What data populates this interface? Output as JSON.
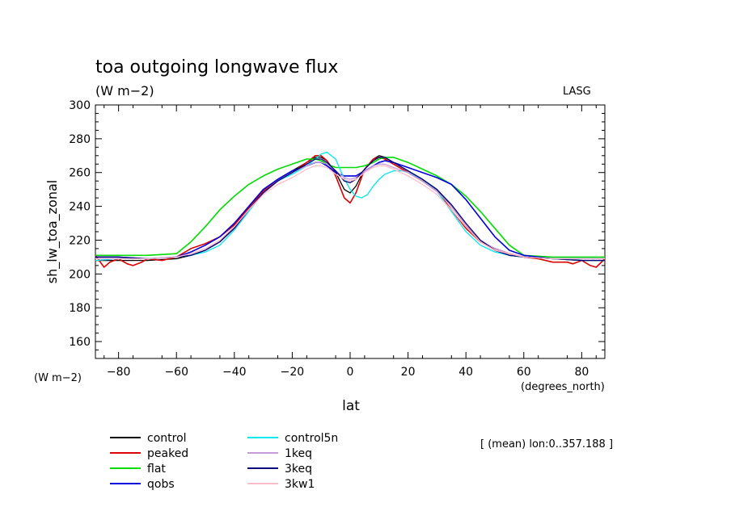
{
  "chart_data": {
    "type": "line",
    "title": "toa outgoing longwave flux",
    "subtitle": "(W m−2)",
    "source_label": "LASG",
    "ylabel": "sh_lw_toa_zonal",
    "xlabel": "lat",
    "x_units": "(degrees_north)",
    "y_units": "(W m−2)",
    "note": "[ (mean) lon:0..357.188 ]",
    "xlim": [
      -88,
      88
    ],
    "ylim": [
      150,
      300
    ],
    "xticks": [
      -80,
      -60,
      -40,
      -20,
      0,
      20,
      40,
      60,
      80
    ],
    "yticks": [
      160,
      180,
      200,
      220,
      240,
      260,
      280,
      300
    ],
    "grid": false,
    "legend_position": "bottom-left",
    "series": [
      {
        "name": "control",
        "color": "#000000",
        "x": [
          -88,
          -80,
          -70,
          -60,
          -55,
          -50,
          -45,
          -40,
          -35,
          -30,
          -25,
          -20,
          -15,
          -12,
          -10,
          -8,
          -5,
          -2,
          0,
          2,
          5,
          8,
          10,
          12,
          15,
          20,
          25,
          30,
          35,
          40,
          45,
          50,
          55,
          60,
          70,
          80,
          88
        ],
        "y": [
          208,
          208,
          208,
          209,
          211,
          214,
          219,
          228,
          240,
          250,
          256,
          261,
          266,
          269,
          269,
          267,
          260,
          250,
          248,
          252,
          262,
          268,
          270,
          269,
          266,
          261,
          256,
          250,
          240,
          229,
          219,
          214,
          211,
          210,
          209,
          208,
          208
        ]
      },
      {
        "name": "peaked",
        "color": "#dd0000",
        "x": [
          -88,
          -85,
          -83,
          -80,
          -77,
          -75,
          -72,
          -70,
          -65,
          -60,
          -55,
          -50,
          -45,
          -40,
          -35,
          -30,
          -25,
          -20,
          -15,
          -12,
          -10,
          -8,
          -5,
          -2,
          0,
          2,
          5,
          8,
          10,
          12,
          15,
          20,
          25,
          30,
          35,
          40,
          45,
          50,
          55,
          60,
          65,
          70,
          75,
          77,
          80,
          83,
          85,
          88
        ],
        "y": [
          211,
          204,
          207,
          209,
          206,
          205,
          207,
          209,
          208,
          210,
          215,
          218,
          222,
          229,
          239,
          249,
          255,
          260,
          266,
          270,
          270,
          267,
          258,
          245,
          242,
          248,
          262,
          268,
          269,
          268,
          265,
          260,
          255,
          249,
          238,
          227,
          219,
          215,
          212,
          210,
          209,
          207,
          207,
          206,
          208,
          205,
          204,
          209
        ],
        "width": 1.6
      },
      {
        "name": "flat",
        "color": "#00dd00",
        "x": [
          -88,
          -80,
          -70,
          -60,
          -55,
          -50,
          -45,
          -40,
          -35,
          -30,
          -25,
          -20,
          -15,
          -12,
          -10,
          -8,
          -5,
          -2,
          0,
          2,
          5,
          8,
          10,
          12,
          15,
          20,
          25,
          30,
          35,
          40,
          45,
          50,
          55,
          60,
          70,
          80,
          88
        ],
        "y": [
          211,
          211,
          211,
          212,
          219,
          228,
          238,
          246,
          253,
          258,
          262,
          265,
          268,
          268,
          267,
          265,
          263,
          263,
          263,
          263,
          264,
          266,
          268,
          269,
          269,
          266,
          262,
          258,
          253,
          246,
          237,
          227,
          217,
          211,
          210,
          210,
          210
        ],
        "width": 1.6
      },
      {
        "name": "qobs",
        "color": "#0000dd",
        "x": [
          -88,
          -80,
          -70,
          -60,
          -55,
          -50,
          -45,
          -40,
          -35,
          -30,
          -25,
          -20,
          -15,
          -12,
          -10,
          -8,
          -5,
          -2,
          0,
          2,
          5,
          8,
          10,
          12,
          15,
          20,
          25,
          30,
          35,
          40,
          45,
          50,
          55,
          60,
          70,
          80,
          88
        ],
        "y": [
          210,
          210,
          209,
          210,
          213,
          217,
          222,
          230,
          240,
          250,
          256,
          261,
          264,
          266,
          266,
          264,
          260,
          258,
          258,
          258,
          261,
          264,
          266,
          267,
          266,
          263,
          260,
          257,
          253,
          244,
          233,
          222,
          214,
          211,
          209,
          209,
          209
        ],
        "width": 1.6
      },
      {
        "name": "control5n",
        "color": "#00e8f0",
        "x": [
          -88,
          -80,
          -70,
          -60,
          -55,
          -50,
          -45,
          -40,
          -35,
          -30,
          -25,
          -20,
          -15,
          -12,
          -10,
          -8,
          -5,
          -3,
          0,
          2,
          4,
          6,
          8,
          10,
          12,
          15,
          18,
          20,
          25,
          30,
          35,
          40,
          45,
          50,
          55,
          60,
          70,
          80,
          88
        ],
        "y": [
          208,
          209,
          209,
          210,
          211,
          213,
          217,
          226,
          237,
          248,
          255,
          259,
          264,
          268,
          271,
          272,
          268,
          260,
          250,
          246,
          245,
          247,
          252,
          256,
          259,
          261,
          261,
          260,
          256,
          249,
          237,
          225,
          217,
          213,
          211,
          210,
          209,
          208,
          208
        ]
      },
      {
        "name": "1keq",
        "color": "#c89bdc",
        "x": [
          -88,
          -80,
          -70,
          -60,
          -55,
          -50,
          -45,
          -40,
          -35,
          -30,
          -25,
          -20,
          -15,
          -12,
          -10,
          -8,
          -5,
          -2,
          0,
          2,
          5,
          8,
          10,
          12,
          15,
          20,
          25,
          30,
          35,
          40,
          45,
          50,
          55,
          60,
          70,
          80,
          88
        ],
        "y": [
          209,
          209,
          209,
          210,
          212,
          215,
          219,
          227,
          238,
          248,
          255,
          260,
          264,
          266,
          266,
          265,
          261,
          257,
          256,
          257,
          261,
          264,
          265,
          265,
          263,
          260,
          255,
          249,
          240,
          229,
          220,
          215,
          212,
          210,
          209,
          209,
          209
        ]
      },
      {
        "name": "3keq",
        "color": "#00007a",
        "x": [
          -88,
          -80,
          -70,
          -60,
          -55,
          -50,
          -45,
          -40,
          -35,
          -30,
          -25,
          -20,
          -15,
          -12,
          -10,
          -8,
          -5,
          -2,
          0,
          2,
          5,
          8,
          10,
          12,
          15,
          20,
          25,
          30,
          35,
          40,
          45,
          50,
          55,
          60,
          70,
          80,
          88
        ],
        "y": [
          210,
          210,
          209,
          210,
          211,
          214,
          219,
          227,
          238,
          248,
          255,
          260,
          265,
          268,
          268,
          266,
          261,
          255,
          254,
          256,
          262,
          267,
          269,
          269,
          266,
          261,
          256,
          250,
          241,
          230,
          220,
          214,
          211,
          210,
          209,
          208,
          208
        ]
      },
      {
        "name": "3kw1",
        "color": "#ffbcc8",
        "x": [
          -88,
          -80,
          -70,
          -60,
          -55,
          -50,
          -45,
          -40,
          -35,
          -30,
          -25,
          -20,
          -15,
          -12,
          -10,
          -8,
          -5,
          -2,
          0,
          2,
          5,
          8,
          10,
          12,
          15,
          20,
          25,
          30,
          35,
          40,
          45,
          50,
          55,
          60,
          70,
          80,
          88
        ],
        "y": [
          209,
          209,
          209,
          210,
          212,
          215,
          220,
          228,
          238,
          247,
          253,
          257,
          262,
          264,
          264,
          263,
          259,
          256,
          255,
          256,
          260,
          263,
          264,
          264,
          262,
          258,
          253,
          247,
          238,
          228,
          219,
          214,
          212,
          210,
          209,
          209,
          209
        ]
      }
    ]
  }
}
